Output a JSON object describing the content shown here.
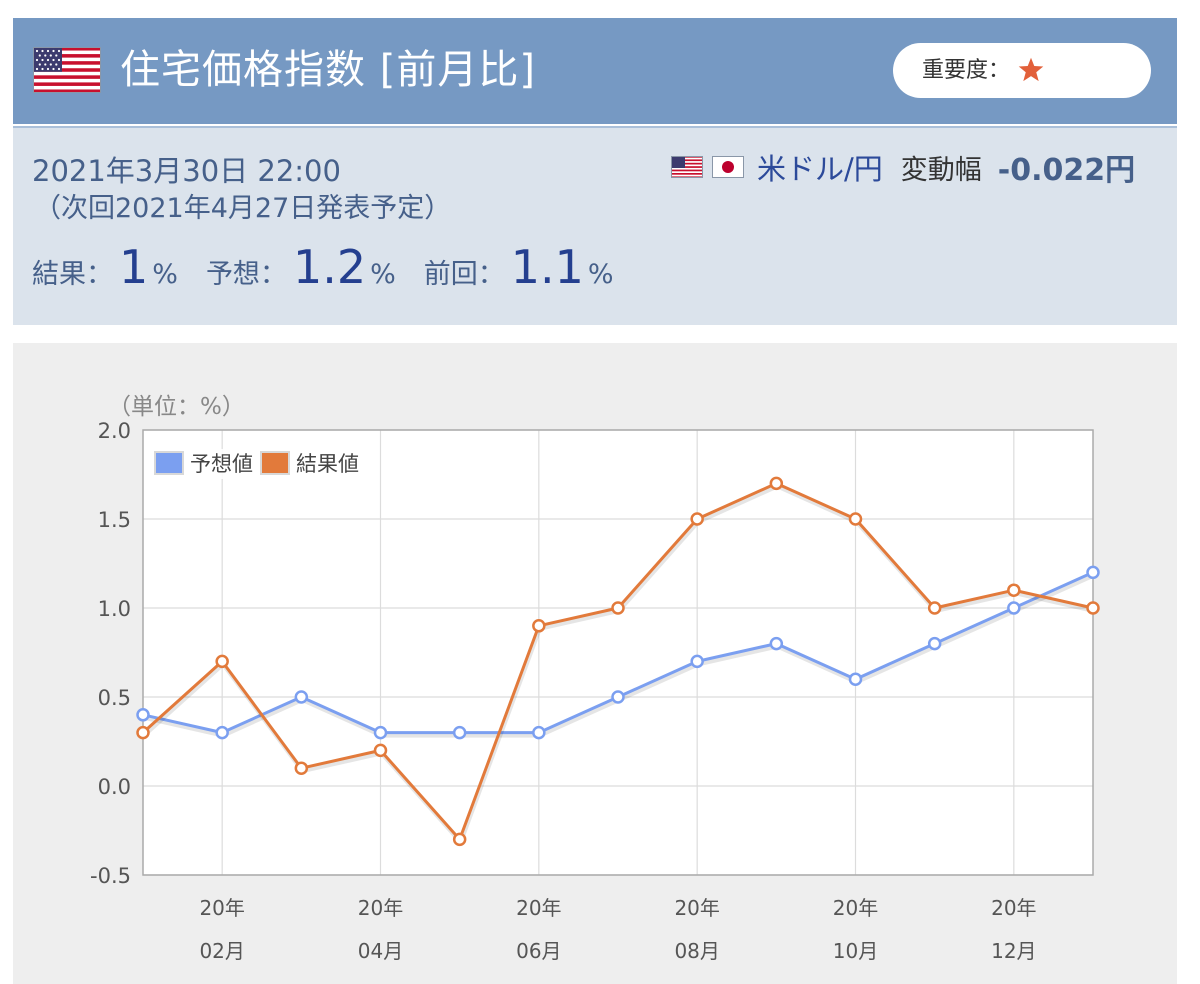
{
  "header": {
    "title": "住宅価格指数 [前月比]",
    "flag_icon": "us-flag-icon",
    "importance_label": "重要度：",
    "importance_icon": "star-icon",
    "importance_stars": 1,
    "colors": {
      "header_bg": "#7699c3",
      "star": "#e2603a"
    }
  },
  "info": {
    "date": "2021年3月30日 22:00",
    "next_release": "（次回2021年4月27日発表予定）",
    "pair_icons": [
      "us-flag-icon",
      "jp-flag-icon"
    ],
    "pair": "米ドル/円",
    "change_label": "変動幅",
    "change_value": "-0.022円",
    "result_label": "結果：",
    "result_value": "1",
    "forecast_label": "予想：",
    "forecast_value": "1.2",
    "previous_label": "前回：",
    "previous_value": "1.1",
    "percent": "%"
  },
  "chart_data": {
    "type": "line",
    "title": "",
    "unit_label": "（単位：%）",
    "xlabel": "",
    "ylabel": "",
    "ylim": [
      -0.5,
      2.0
    ],
    "y_ticks": [
      "2.0",
      "1.5",
      "1.0",
      "0.5",
      "0.0",
      "-0.5"
    ],
    "x_tick_labels": [
      {
        "year": "20年",
        "month": "02月"
      },
      {
        "year": "20年",
        "month": "04月"
      },
      {
        "year": "20年",
        "month": "06月"
      },
      {
        "year": "20年",
        "month": "08月"
      },
      {
        "year": "20年",
        "month": "10月"
      },
      {
        "year": "20年",
        "month": "12月"
      }
    ],
    "legend_position": "top-left",
    "grid": true,
    "series": [
      {
        "name": "予想値",
        "color": "#7b9ff0",
        "values": [
          0.4,
          0.3,
          0.5,
          0.3,
          0.3,
          0.3,
          0.5,
          0.7,
          0.8,
          0.6,
          0.8,
          1.0,
          1.2
        ]
      },
      {
        "name": "結果値",
        "color": "#e27a3b",
        "values": [
          0.3,
          0.7,
          0.1,
          0.2,
          -0.3,
          0.9,
          1.0,
          1.5,
          1.7,
          1.5,
          1.0,
          1.1,
          1.0
        ]
      }
    ]
  }
}
